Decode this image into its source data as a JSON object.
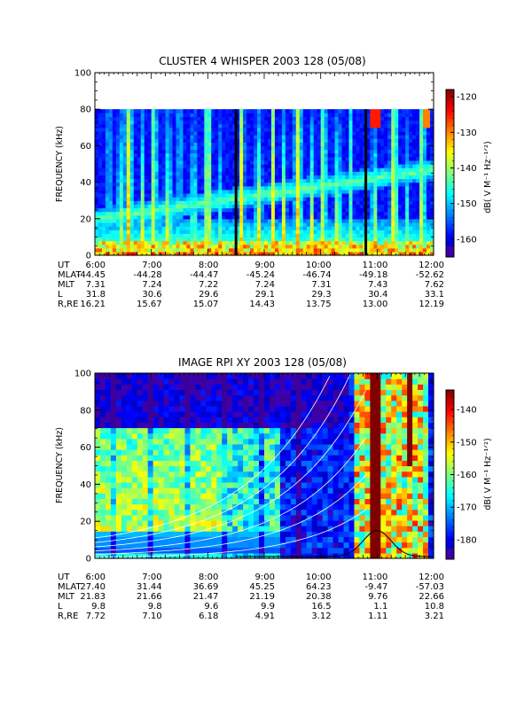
{
  "chart_data": [
    {
      "type": "heatmap",
      "title": "CLUSTER 4 WHISPER 2003 128 (05/08)",
      "ylabel": "FREQUENCY (kHz)",
      "yticks": [
        "0",
        "20",
        "40",
        "60",
        "80",
        "100"
      ],
      "ylim": [
        0,
        100
      ],
      "xlim": [
        "6:00",
        "12:00"
      ],
      "colorbar": {
        "label": "dB( V M⁻¹ Hz⁻¹ᐟ²)",
        "ticks": [
          "-120",
          "-130",
          "-140",
          "-150",
          "-160"
        ],
        "range": [
          -165,
          -118
        ]
      },
      "ephemeris": {
        "rows": [
          {
            "label": "UT",
            "values": [
              "6:00",
              "7:00",
              "8:00",
              "9:00",
              "10:00",
              "11:00",
              "12:00"
            ]
          },
          {
            "label": "MLAT",
            "values": [
              "-44.45",
              "-44.28",
              "-44.47",
              "-45.24",
              "-46.74",
              "-49.18",
              "-52.62"
            ]
          },
          {
            "label": "MLT",
            "values": [
              "7.31",
              "7.24",
              "7.22",
              "7.24",
              "7.31",
              "7.43",
              "7.62"
            ]
          },
          {
            "label": "L",
            "values": [
              "31.8",
              "30.6",
              "29.6",
              "29.1",
              "29.3",
              "30.4",
              "33.1"
            ]
          },
          {
            "label": "R,RE",
            "values": [
              "16.21",
              "15.67",
              "15.07",
              "14.43",
              "13.75",
              "13.00",
              "12.19"
            ]
          }
        ]
      },
      "data_gaps_ut": [
        8.5,
        10.8
      ],
      "data_top_khz": 80
    },
    {
      "type": "heatmap",
      "title": "IMAGE RPI XY 2003 128 (05/08)",
      "ylabel": "FREQUENCY (kHz)",
      "yticks": [
        "0",
        "20",
        "40",
        "60",
        "80",
        "100"
      ],
      "ylim": [
        0,
        100
      ],
      "xlim": [
        "6:00",
        "12:00"
      ],
      "colorbar": {
        "label": "dB( V M⁻¹ Hz⁻¹ᐟ²)",
        "ticks": [
          "-140",
          "-150",
          "-160",
          "-170",
          "-180"
        ],
        "range": [
          -186,
          -134
        ]
      },
      "ephemeris": {
        "rows": [
          {
            "label": "UT",
            "values": [
              "6:00",
              "7:00",
              "8:00",
              "9:00",
              "10:00",
              "11:00",
              "12:00"
            ]
          },
          {
            "label": "MLAT",
            "values": [
              "27.40",
              "31.44",
              "36.69",
              "45.25",
              "64.23",
              "-9.47",
              "-57.03"
            ]
          },
          {
            "label": "MLT",
            "values": [
              "21.83",
              "21.66",
              "21.47",
              "21.19",
              "20.38",
              "9.76",
              "22.66"
            ]
          },
          {
            "label": "L",
            "values": [
              "9.8",
              "9.8",
              "9.6",
              "9.9",
              "16.5",
              "1.1",
              "10.8"
            ]
          },
          {
            "label": "R,RE",
            "values": [
              "7.72",
              "7.10",
              "6.18",
              "4.91",
              "3.12",
              "1.11",
              "3.21"
            ]
          }
        ]
      }
    }
  ]
}
